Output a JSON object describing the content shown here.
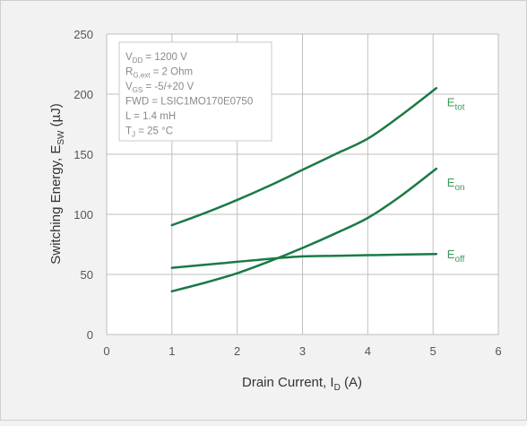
{
  "chart_data": {
    "type": "line",
    "xlabel": "Drain Current, I",
    "xlabel_sub": "D",
    "xlabel_unit": " (A)",
    "ylabel": "Switching Energy, E",
    "ylabel_sub": "SW",
    "ylabel_unit": " (µJ)",
    "xlim": [
      0,
      6
    ],
    "ylim": [
      0,
      250
    ],
    "xticks": [
      "0",
      "1",
      "2",
      "3",
      "4",
      "5",
      "6"
    ],
    "yticks": [
      "0",
      "50",
      "100",
      "150",
      "200",
      "250"
    ],
    "grid": true,
    "series": [
      {
        "name": "E",
        "name_sub": "tot",
        "x": [
          1,
          1.5,
          2,
          2.5,
          3,
          3.5,
          4,
          4.5,
          5.05
        ],
        "y": [
          91,
          101,
          112,
          124,
          137,
          150,
          163,
          182,
          205
        ]
      },
      {
        "name": "E",
        "name_sub": "on",
        "x": [
          1,
          1.5,
          2,
          2.5,
          3,
          3.5,
          4,
          4.5,
          5.05
        ],
        "y": [
          36,
          43,
          51,
          61,
          72,
          84,
          97,
          115,
          138
        ]
      },
      {
        "name": "E",
        "name_sub": "off",
        "x": [
          1,
          1.5,
          2,
          2.5,
          3,
          3.5,
          4,
          4.5,
          5.05
        ],
        "y": [
          55.5,
          58,
          60.5,
          63,
          65,
          65.5,
          66,
          66.5,
          67
        ]
      }
    ],
    "annotations": [
      {
        "main": "V",
        "sub": "DD",
        "rest": " = 1200 V"
      },
      {
        "main": "R",
        "sub": "G,ext",
        "rest": " = 2 Ohm"
      },
      {
        "main": "V",
        "sub": "GS",
        "rest": " = -5/+20 V"
      },
      {
        "main": "FWD = LSIC1MO170E0750",
        "sub": "",
        "rest": ""
      },
      {
        "main": "L = 1.4 mH",
        "sub": "",
        "rest": ""
      },
      {
        "main": "T",
        "sub": "J",
        "rest": " = 25 °C"
      }
    ],
    "colors": {
      "line": "#1a7a45",
      "label": "#3b9a5b",
      "grid": "#bfbfbf",
      "axis_text": "#555555",
      "annotation_text": "#8a8a8a"
    }
  }
}
